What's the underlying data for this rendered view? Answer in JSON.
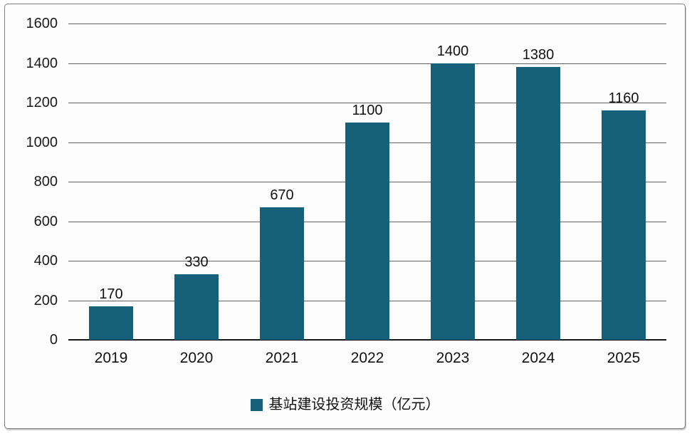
{
  "chart_data": {
    "type": "bar",
    "title": "",
    "xlabel": "",
    "ylabel": "",
    "categories": [
      "2019",
      "2020",
      "2021",
      "2022",
      "2023",
      "2024",
      "2025"
    ],
    "values": [
      170,
      330,
      670,
      1100,
      1400,
      1380,
      1160
    ],
    "series_name": "基站建设投资规模（亿元）",
    "ylim": [
      0,
      1600
    ],
    "yticks": [
      0,
      200,
      400,
      600,
      800,
      1000,
      1200,
      1400,
      1600
    ],
    "grid": true,
    "legend_position": "bottom",
    "colors": {
      "bar": "#16607A",
      "gridline": "#636363",
      "axis_line": "#161616",
      "frame_border": "#7e7e7e",
      "text": "#1a1a1a",
      "background": "#fdfdfd"
    }
  }
}
